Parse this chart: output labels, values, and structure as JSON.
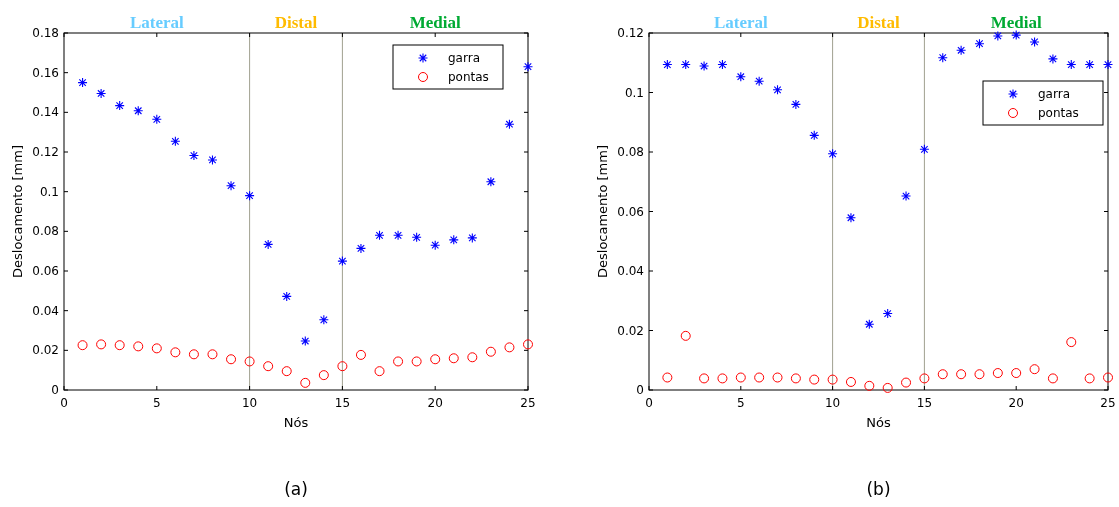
{
  "chart_data": [
    {
      "type": "scatter",
      "xlabel": "Nós",
      "ylabel": "Deslocamento [mm]",
      "x": [
        1,
        2,
        3,
        4,
        5,
        6,
        7,
        8,
        9,
        10,
        11,
        12,
        13,
        14,
        15,
        16,
        17,
        18,
        19,
        20,
        21,
        22,
        23,
        24,
        25
      ],
      "xlim": [
        0,
        25
      ],
      "xticks": [
        0,
        5,
        10,
        15,
        20,
        25
      ],
      "ylim": [
        0,
        0.18
      ],
      "yticks": [
        0,
        0.02,
        0.04,
        0.06,
        0.08,
        0.1,
        0.12,
        0.14,
        0.16,
        0.18
      ],
      "legend": "top right",
      "series": [
        {
          "name": "garra",
          "color": "#0000ff",
          "marker": "cross",
          "values": [
            0.155,
            0.1495,
            0.1434,
            0.1408,
            0.1365,
            0.1254,
            0.1182,
            0.116,
            0.103,
            0.098,
            0.0734,
            0.0472,
            0.0247,
            0.0354,
            0.065,
            0.0714,
            0.078,
            0.078,
            0.077,
            0.073,
            0.0757,
            0.0767,
            0.105,
            0.134,
            0.163
          ]
        },
        {
          "name": "pontas",
          "color": "#ff0000",
          "marker": "circle",
          "values": [
            0.0226,
            0.023,
            0.0226,
            0.022,
            0.021,
            0.019,
            0.018,
            0.018,
            0.0155,
            0.0144,
            0.012,
            0.0095,
            0.0036,
            0.0075,
            0.012,
            0.0177,
            0.0095,
            0.0144,
            0.0144,
            0.0155,
            0.016,
            0.0165,
            0.0193,
            0.0215,
            0.023
          ]
        }
      ],
      "ref_lines": [
        {
          "axis": "x",
          "value": 10,
          "color": "#a0a090"
        },
        {
          "axis": "x",
          "value": 15,
          "color": "#a0a090"
        }
      ],
      "annotations": [
        "Lateral",
        "Distal",
        "Medial",
        "(a)"
      ]
    },
    {
      "type": "scatter",
      "xlabel": "Nós",
      "ylabel": "Deslocamento [mm]",
      "x": [
        1,
        2,
        3,
        4,
        5,
        6,
        7,
        8,
        9,
        10,
        11,
        12,
        13,
        14,
        15,
        16,
        17,
        18,
        19,
        20,
        21,
        22,
        23,
        24,
        25
      ],
      "xlim": [
        0,
        25
      ],
      "xticks": [
        0,
        5,
        10,
        15,
        20,
        25
      ],
      "ylim": [
        0,
        0.12
      ],
      "yticks": [
        0,
        0.02,
        0.04,
        0.06,
        0.08,
        0.1,
        0.12
      ],
      "legend": "right",
      "series": [
        {
          "name": "garra",
          "color": "#0000ff",
          "marker": "cross",
          "values": [
            0.1094,
            0.1094,
            0.1089,
            0.1094,
            0.1053,
            0.1038,
            0.1009,
            0.096,
            0.0856,
            0.0794,
            0.0579,
            0.0221,
            0.0257,
            0.0652,
            0.0809,
            0.1117,
            0.1142,
            0.1164,
            0.119,
            0.1193,
            0.117,
            0.1113,
            0.1094,
            0.1094,
            0.1094
          ]
        },
        {
          "name": "pontas",
          "color": "#ff0000",
          "marker": "circle",
          "values": [
            0.0042,
            0.0182,
            0.0039,
            0.0039,
            0.0042,
            0.0042,
            0.0042,
            0.0039,
            0.0035,
            0.0035,
            0.0027,
            0.0014,
            0.0007,
            0.0025,
            0.0039,
            0.0053,
            0.0053,
            0.0053,
            0.0057,
            0.0057,
            0.007,
            0.0039,
            0.0161,
            0.0039,
            0.0042
          ]
        }
      ],
      "ref_lines": [
        {
          "axis": "x",
          "value": 10,
          "color": "#a0a090"
        },
        {
          "axis": "x",
          "value": 15,
          "color": "#a0a090"
        }
      ],
      "annotations": [
        "Lateral",
        "Distal",
        "Medial",
        "(b)"
      ]
    }
  ]
}
